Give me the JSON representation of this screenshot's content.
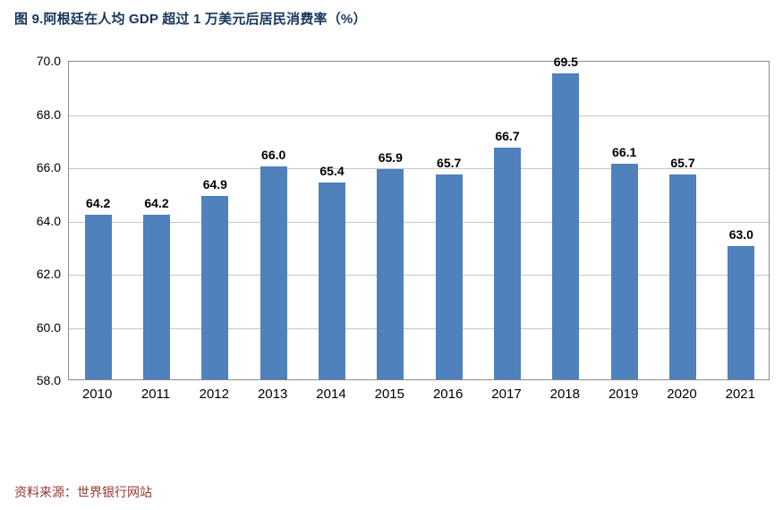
{
  "title": "图 9.阿根廷在人均 GDP 超过 1 万美元后居民消费率（%）",
  "source": "资料来源：世界银行网站",
  "colors": {
    "bar": "#4f81bd",
    "title_text": "#16365c",
    "source_text": "#943634",
    "gridline": "#c6c6c6",
    "plot_border": "#8c8c8c"
  },
  "chart_data": {
    "type": "bar",
    "title": "图 9.阿根廷在人均 GDP 超过 1 万美元后居民消费率（%）",
    "categories": [
      "2010",
      "2011",
      "2012",
      "2013",
      "2014",
      "2015",
      "2016",
      "2017",
      "2018",
      "2019",
      "2020",
      "2021"
    ],
    "values": [
      64.2,
      64.2,
      64.9,
      66.0,
      65.4,
      65.9,
      65.7,
      66.7,
      69.5,
      66.1,
      65.7,
      63.0
    ],
    "xlabel": "",
    "ylabel": "",
    "ylim": [
      58.0,
      70.0
    ],
    "ytick_step": 2.0,
    "yticks": [
      "70.0",
      "68.0",
      "66.0",
      "64.0",
      "62.0",
      "60.0",
      "58.0"
    ],
    "grid": "horizontal",
    "legend": "none",
    "value_labels": "above-bars",
    "source": "资料来源：世界银行网站"
  }
}
